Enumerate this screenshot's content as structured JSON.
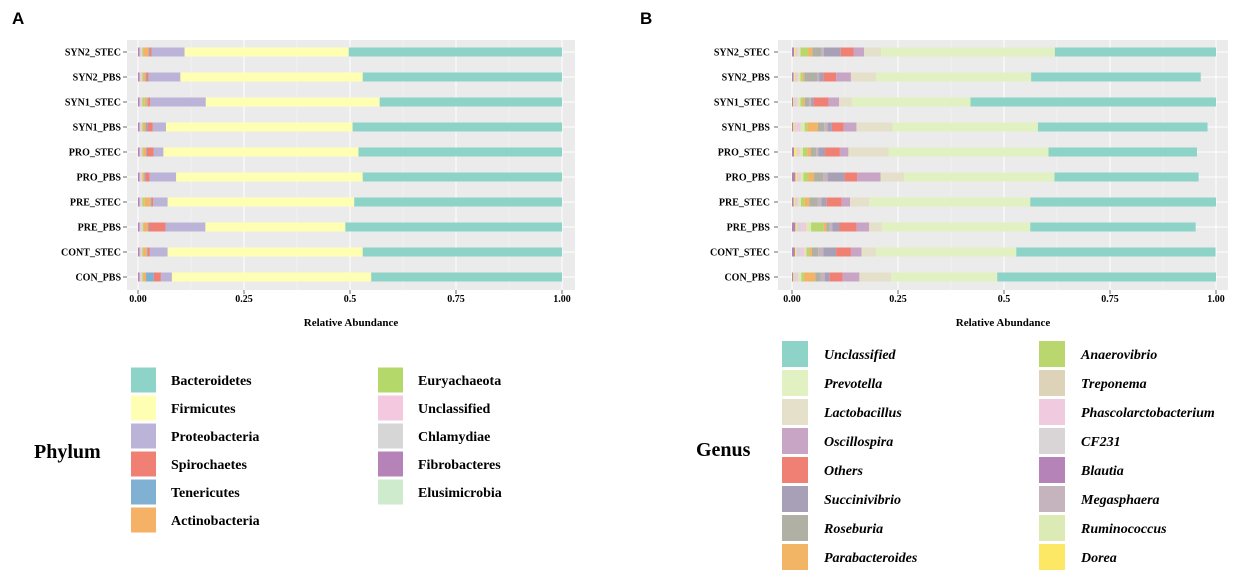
{
  "chart_data": [
    {
      "panel": "A",
      "type": "bar",
      "orientation": "horizontal",
      "stacked": true,
      "xlabel": "Relative Abundance",
      "xlim": [
        0,
        1
      ],
      "x_ticks": [
        "0.00",
        "0.25",
        "0.5",
        "0.75",
        "1.00"
      ],
      "x_tick_values": [
        0,
        0.25,
        0.5,
        0.75,
        1.0
      ],
      "grid": true,
      "categories": [
        "SYN2_STEC",
        "SYN2_PBS",
        "SYN1_STEC",
        "SYN1_PBS",
        "PRO_STEC",
        "PRO_PBS",
        "PRE_STEC",
        "PRE_PBS",
        "CONT_STEC",
        "CON_PBS"
      ],
      "legend_title": "Phylum",
      "legend_columns": [
        [
          "Bacteroidetes",
          "Firmicutes",
          "Proteobacteria",
          "Spirochaetes",
          "Tenericutes",
          "Actinobacteria"
        ],
        [
          "Euryachaeota",
          "Unclassified",
          "Chlamydiae",
          "Fibrobacteres",
          "Elusimicrobia"
        ]
      ],
      "series": [
        {
          "name": "Fibrobacteres",
          "color": "#b683b8",
          "values": [
            0.004,
            0.004,
            0.004,
            0.004,
            0.004,
            0.004,
            0.004,
            0.004,
            0.004,
            0.004
          ]
        },
        {
          "name": "Chlamydiae",
          "color": "#d6d6d6",
          "values": [
            0.003,
            0.003,
            0.003,
            0.003,
            0.003,
            0.003,
            0.003,
            0.003,
            0.003,
            0.003
          ]
        },
        {
          "name": "Unclassified",
          "color": "#f4c8de",
          "values": [
            0.003,
            0.003,
            0.003,
            0.003,
            0.003,
            0.003,
            0.003,
            0.004,
            0.003,
            0.003
          ]
        },
        {
          "name": "Euryachaeota",
          "color": "#b5d86a",
          "values": [
            0.003,
            0.003,
            0.006,
            0.003,
            0.003,
            0.002,
            0.006,
            0.003,
            0.003,
            0.003
          ]
        },
        {
          "name": "Actinobacteria",
          "color": "#f5b266",
          "values": [
            0.012,
            0.005,
            0.006,
            0.005,
            0.006,
            0.003,
            0.014,
            0.009,
            0.008,
            0.006
          ]
        },
        {
          "name": "Tenericutes",
          "color": "#80b1d3",
          "values": [
            0.002,
            0.002,
            0.002,
            0.004,
            0.002,
            0.002,
            0.002,
            0.002,
            0.002,
            0.018
          ]
        },
        {
          "name": "Spirochaetes",
          "color": "#f18074",
          "values": [
            0.005,
            0.005,
            0.005,
            0.013,
            0.016,
            0.01,
            0.004,
            0.04,
            0.005,
            0.017
          ]
        },
        {
          "name": "Proteobacteria",
          "color": "#bcb4d8",
          "values": [
            0.078,
            0.075,
            0.131,
            0.031,
            0.023,
            0.063,
            0.034,
            0.094,
            0.042,
            0.026
          ]
        },
        {
          "name": "Firmicutes",
          "color": "#ffffb3",
          "values": [
            0.387,
            0.43,
            0.41,
            0.44,
            0.46,
            0.44,
            0.44,
            0.33,
            0.46,
            0.47
          ]
        },
        {
          "name": "Bacteroidetes",
          "color": "#8dd3c7",
          "values": [
            0.503,
            0.47,
            0.43,
            0.494,
            0.48,
            0.473,
            0.49,
            0.511,
            0.47,
            0.45
          ]
        },
        {
          "name": "Elusimicrobia",
          "color": "#cfebcd",
          "values": [
            0,
            0,
            0,
            0,
            0,
            0,
            0,
            0,
            0,
            0
          ]
        }
      ]
    },
    {
      "panel": "B",
      "type": "bar",
      "orientation": "horizontal",
      "stacked": true,
      "xlabel": "Relative Abundance",
      "xlim": [
        0,
        1
      ],
      "x_ticks": [
        "0.00",
        "0.25",
        "0.5",
        "0.75",
        "1.00"
      ],
      "x_tick_values": [
        0,
        0.25,
        0.5,
        0.75,
        1.0
      ],
      "grid": true,
      "categories": [
        "SYN2_STEC",
        "SYN2_PBS",
        "SYN1_STEC",
        "SYN1_PBS",
        "PRO_STEC",
        "PRO_PBS",
        "PRE_STEC",
        "PRE_PBS",
        "CONT_STEC",
        "CON_PBS"
      ],
      "legend_title": "Genus",
      "legend_columns": [
        [
          "Unclassified",
          "Prevotella",
          "Lactobacillus",
          "Oscillospira",
          "Others",
          "Succinivibrio",
          "Roseburia",
          "Parabacteroides"
        ],
        [
          "Anaerovibrio",
          "Treponema",
          "Phascolarctobacterium",
          "CF231",
          "Blautia",
          "Megasphaera",
          "Ruminococcus",
          "Dorea"
        ]
      ],
      "series": [
        {
          "name": "Blautia",
          "color": "#b683b8",
          "values": [
            0.005,
            0.004,
            0.003,
            0.003,
            0.005,
            0.008,
            0.004,
            0.008,
            0.007,
            0.003
          ]
        },
        {
          "name": "Dorea",
          "color": "#fde866",
          "values": [
            0.003,
            0.003,
            0.002,
            0.003,
            0.006,
            0.004,
            0.003,
            0.003,
            0.003,
            0.002
          ]
        },
        {
          "name": "CF231",
          "color": "#d9d5d6",
          "values": [
            0.004,
            0.004,
            0.004,
            0.004,
            0.003,
            0.004,
            0.005,
            0.012,
            0.01,
            0.005
          ]
        },
        {
          "name": "Phascolarctobacterium",
          "color": "#f0cbe0",
          "values": [
            0.004,
            0.004,
            0.004,
            0.01,
            0.004,
            0.005,
            0.004,
            0.01,
            0.01,
            0.005
          ]
        },
        {
          "name": "Ruminococcus",
          "color": "#dcebb6",
          "values": [
            0.004,
            0.005,
            0.007,
            0.01,
            0.008,
            0.006,
            0.005,
            0.012,
            0.004,
            0.007
          ]
        },
        {
          "name": "Anaerovibrio",
          "color": "#b9d66f",
          "values": [
            0.018,
            0.005,
            0.006,
            0.006,
            0.01,
            0.012,
            0.008,
            0.03,
            0.007,
            0.006
          ]
        },
        {
          "name": "Parabacteroides",
          "color": "#f1b565",
          "values": [
            0.01,
            0.004,
            0.004,
            0.025,
            0.008,
            0.013,
            0.012,
            0.006,
            0.006,
            0.027
          ]
        },
        {
          "name": "Roseburia",
          "color": "#b0b0a4",
          "values": [
            0.022,
            0.03,
            0.011,
            0.015,
            0.013,
            0.022,
            0.02,
            0.008,
            0.015,
            0.013
          ]
        },
        {
          "name": "Megasphaera",
          "color": "#c5b4bd",
          "values": [
            0.005,
            0.005,
            0.004,
            0.008,
            0.005,
            0.01,
            0.008,
            0.006,
            0.012,
            0.009
          ]
        },
        {
          "name": "Succinivibrio",
          "color": "#a8a0b6",
          "values": [
            0.04,
            0.01,
            0.006,
            0.01,
            0.016,
            0.04,
            0.013,
            0.017,
            0.03,
            0.012
          ]
        },
        {
          "name": "Others",
          "color": "#f18074",
          "values": [
            0.03,
            0.03,
            0.035,
            0.028,
            0.035,
            0.03,
            0.035,
            0.04,
            0.035,
            0.03
          ]
        },
        {
          "name": "Oscillospira",
          "color": "#c9a5c5",
          "values": [
            0.025,
            0.035,
            0.025,
            0.03,
            0.02,
            0.055,
            0.02,
            0.03,
            0.025,
            0.04
          ]
        },
        {
          "name": "Lactobacillus",
          "color": "#e5e0c9",
          "values": [
            0.04,
            0.06,
            0.03,
            0.085,
            0.095,
            0.055,
            0.045,
            0.03,
            0.035,
            0.075
          ]
        },
        {
          "name": "Treponema",
          "color": "#ddd3b8",
          "values": [
            0,
            0,
            0,
            0,
            0,
            0,
            0,
            0,
            0,
            0
          ]
        },
        {
          "name": "Prevotella",
          "color": "#e2f1c2",
          "values": [
            0.41,
            0.365,
            0.28,
            0.343,
            0.377,
            0.355,
            0.38,
            0.35,
            0.33,
            0.25
          ]
        },
        {
          "name": "Unclassified",
          "color": "#8dd3c7",
          "values": [
            0.38,
            0.4,
            0.58,
            0.4,
            0.35,
            0.34,
            0.44,
            0.39,
            0.47,
            0.52
          ]
        }
      ]
    }
  ],
  "panels": {
    "a_letter": "A",
    "b_letter": "B"
  },
  "legend_colors": {
    "Phylum": {
      "Bacteroidetes": "#8dd3c7",
      "Firmicutes": "#ffffb3",
      "Proteobacteria": "#bcb4d8",
      "Spirochaetes": "#f18074",
      "Tenericutes": "#80b1d3",
      "Actinobacteria": "#f5b266",
      "Euryachaeota": "#b5d86a",
      "Unclassified": "#f4c8de",
      "Chlamydiae": "#d6d6d6",
      "Fibrobacteres": "#b683b8",
      "Elusimicrobia": "#cfebcd"
    },
    "Genus": {
      "Unclassified": "#8dd3c7",
      "Prevotella": "#e2f1c2",
      "Lactobacillus": "#e5e0c9",
      "Oscillospira": "#c9a5c5",
      "Others": "#f18074",
      "Succinivibrio": "#a8a0b6",
      "Roseburia": "#b0b0a4",
      "Parabacteroides": "#f1b565",
      "Anaerovibrio": "#b9d66f",
      "Treponema": "#ddd3b8",
      "Phascolarctobacterium": "#f0cbe0",
      "CF231": "#d9d5d6",
      "Blautia": "#b683b8",
      "Megasphaera": "#c5b4bd",
      "Ruminococcus": "#dcebb6",
      "Dorea": "#fde866"
    }
  }
}
